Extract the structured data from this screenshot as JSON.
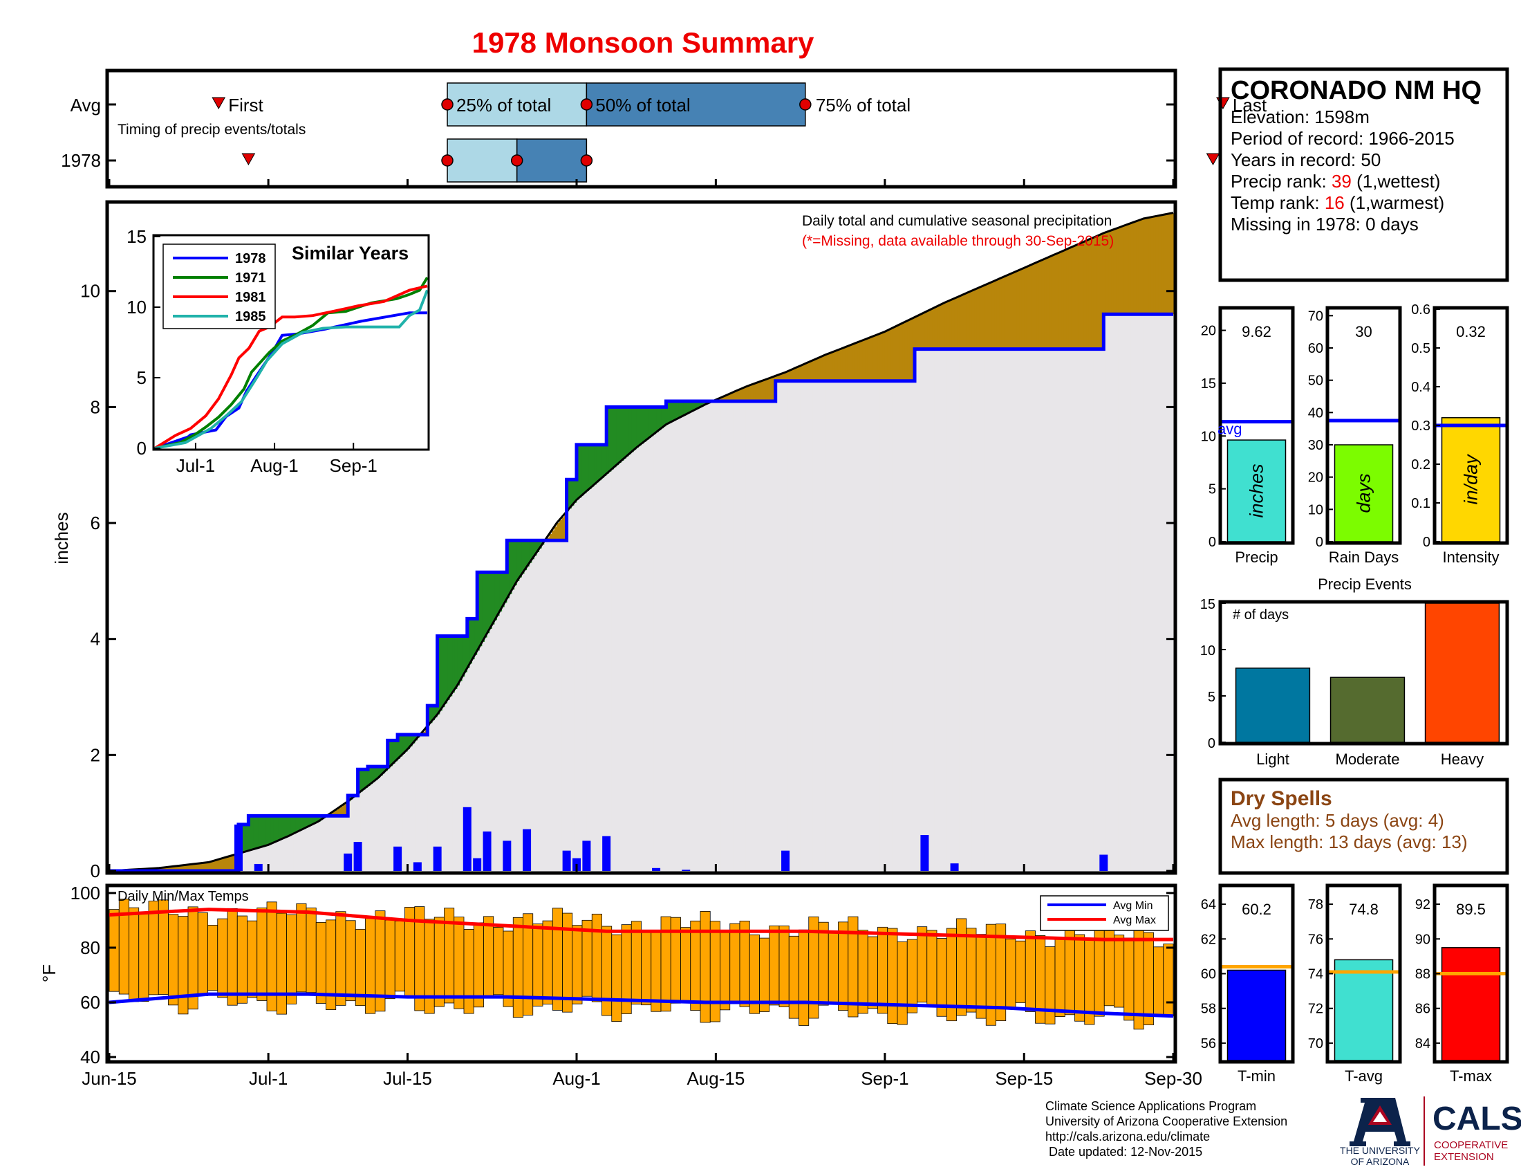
{
  "title": "1978 Monsoon Summary",
  "station": {
    "name": "CORONADO NM HQ",
    "lines": [
      "Elevation: 1598m",
      "Period of record: 1966-2015",
      "Years in record: 50"
    ],
    "precip_rank_prefix": "Precip rank: ",
    "precip_rank": "39",
    "precip_rank_suffix": " (1,wettest)",
    "temp_rank_prefix": "Temp rank: ",
    "temp_rank": "16",
    "temp_rank_suffix": " (1,warmest)",
    "missing": "Missing in 1978: 0 days"
  },
  "timing": {
    "row_labels": [
      "Avg",
      "1978"
    ],
    "first_label": "First",
    "last_label": "Last",
    "pct25_label": "25% of total",
    "pct50_label": "50% of total",
    "pct75_label": "75% of total",
    "note": "Timing of precip events/totals",
    "avg": {
      "first": 11,
      "p25": 34,
      "p50": 48,
      "p75": 70,
      "last": 112
    },
    "y1978": {
      "first": 14,
      "p25": 34,
      "p50": 41,
      "p75": 48,
      "last": 111
    },
    "colors": {
      "light": "#add8e6",
      "dark": "#4682b4",
      "marker": "#e00000"
    }
  },
  "chart_data": [
    {
      "type": "area",
      "id": "cumulative",
      "title": "Daily total and cumulative seasonal precipitation",
      "subtitle": "(*=Missing, data available through 30-Sep-2015)",
      "ylabel": "inches",
      "xlim": [
        0,
        107
      ],
      "ylim": [
        0,
        11.5
      ],
      "x_ticks": [
        {
          "day": 0,
          "label": "Jun-15"
        },
        {
          "day": 16,
          "label": "Jul-1"
        },
        {
          "day": 30,
          "label": "Jul-15"
        },
        {
          "day": 47,
          "label": "Aug-1"
        },
        {
          "day": 61,
          "label": "Aug-15"
        },
        {
          "day": 78,
          "label": "Sep-1"
        },
        {
          "day": 92,
          "label": "Sep-15"
        },
        {
          "day": 107,
          "label": "Sep-30"
        }
      ],
      "y_ticks": [
        0,
        2,
        4,
        6,
        8,
        10
      ],
      "series": [
        {
          "name": "Avg cumulative",
          "x": [
            0,
            5,
            10,
            13,
            16,
            18,
            21,
            24,
            27,
            30,
            33,
            35,
            37,
            39,
            41,
            43,
            45,
            47,
            50,
            53,
            56,
            60,
            64,
            68,
            70,
            72,
            75,
            78,
            81,
            84,
            88,
            92,
            96,
            100,
            104,
            107
          ],
          "y": [
            0,
            0.05,
            0.15,
            0.3,
            0.45,
            0.6,
            0.85,
            1.2,
            1.6,
            2.1,
            2.7,
            3.2,
            3.8,
            4.4,
            5.0,
            5.5,
            6.0,
            6.4,
            6.85,
            7.3,
            7.7,
            8.05,
            8.35,
            8.6,
            8.75,
            8.9,
            9.1,
            9.3,
            9.55,
            9.8,
            10.1,
            10.4,
            10.7,
            11.0,
            11.25,
            11.35
          ]
        },
        {
          "name": "1978 cumulative",
          "x": [
            0,
            13,
            13,
            14,
            14,
            24,
            24,
            25,
            25,
            26,
            26,
            28,
            28,
            29,
            29,
            32,
            32,
            33,
            33,
            36,
            36,
            37,
            37,
            40,
            40,
            46,
            46,
            47,
            47,
            50,
            50,
            56,
            56,
            67,
            67,
            81,
            81,
            100,
            100,
            107
          ],
          "y": [
            0,
            0,
            0.8,
            0.8,
            0.95,
            0.95,
            1.3,
            1.3,
            1.75,
            1.75,
            1.8,
            1.8,
            2.25,
            2.25,
            2.35,
            2.35,
            2.85,
            2.85,
            4.05,
            4.05,
            4.35,
            4.35,
            5.15,
            5.15,
            5.7,
            5.7,
            6.75,
            6.75,
            7.35,
            7.35,
            8.0,
            8.0,
            8.1,
            8.1,
            8.45,
            8.45,
            9.0,
            9.0,
            9.6,
            9.6
          ]
        },
        {
          "name": "1978 daily",
          "days": [
            13,
            15,
            24,
            25,
            29,
            31,
            33,
            36,
            37,
            38,
            40,
            42,
            46,
            47,
            48,
            50,
            55,
            58,
            68,
            82,
            85,
            100
          ],
          "values": [
            0.8,
            0.12,
            0.3,
            0.5,
            0.42,
            0.15,
            0.42,
            1.1,
            0.22,
            0.68,
            0.52,
            0.72,
            0.35,
            0.22,
            0.52,
            0.6,
            0.05,
            0.02,
            0.35,
            0.62,
            0.13,
            0.28
          ]
        }
      ],
      "colors": {
        "line": "#0000ff",
        "above_avg": "#228b22",
        "below_avg": "#b8860b",
        "base": "#e8e6e9",
        "bar": "#0000ff"
      }
    },
    {
      "type": "line",
      "id": "similar_years",
      "title": "Similar Years",
      "ylim": [
        0,
        15
      ],
      "xlim": [
        0,
        107
      ],
      "y_ticks": [
        0,
        5,
        10,
        15
      ],
      "x_ticks": [
        {
          "day": 16,
          "label": "Jul-1"
        },
        {
          "day": 47,
          "label": "Aug-1"
        },
        {
          "day": 78,
          "label": "Sep-1"
        }
      ],
      "series": [
        {
          "name": "1978",
          "color": "#0000ff",
          "x": [
            0,
            13,
            14,
            24,
            28,
            33,
            36,
            40,
            46,
            50,
            56,
            67,
            81,
            100,
            107
          ],
          "y": [
            0,
            0.8,
            0.95,
            1.3,
            2.25,
            2.85,
            4.05,
            5.15,
            6.75,
            8.0,
            8.1,
            8.45,
            9.0,
            9.6,
            9.6
          ]
        },
        {
          "name": "1971",
          "color": "#008000",
          "x": [
            0,
            10,
            16,
            20,
            25,
            30,
            35,
            38,
            45,
            50,
            56,
            62,
            68,
            75,
            85,
            95,
            100,
            104,
            107
          ],
          "y": [
            0,
            0.4,
            1.0,
            1.5,
            2.2,
            3.1,
            4.2,
            5.4,
            6.8,
            7.6,
            8.1,
            8.7,
            9.6,
            9.7,
            10.3,
            10.6,
            10.9,
            11.2,
            12.1
          ]
        },
        {
          "name": "1981",
          "color": "#ff0000",
          "x": [
            0,
            8,
            14,
            20,
            25,
            30,
            33,
            37,
            41,
            45,
            50,
            55,
            62,
            70,
            80,
            90,
            100,
            107
          ],
          "y": [
            0,
            0.9,
            1.4,
            2.3,
            3.5,
            5.2,
            6.4,
            7.1,
            8.3,
            8.6,
            9.3,
            9.3,
            9.4,
            9.7,
            10.1,
            10.4,
            11.2,
            11.5
          ]
        },
        {
          "name": "1985",
          "color": "#20b2aa",
          "x": [
            0,
            12,
            18,
            22,
            28,
            34,
            40,
            44,
            50,
            58,
            66,
            75,
            85,
            96,
            100,
            104,
            107
          ],
          "y": [
            0,
            0.4,
            1.0,
            1.4,
            2.3,
            3.3,
            5.0,
            6.2,
            7.4,
            8.2,
            8.5,
            8.6,
            8.6,
            8.6,
            9.4,
            9.8,
            11.2
          ]
        }
      ]
    },
    {
      "type": "bar",
      "id": "precip_total",
      "categories": [
        "Precip"
      ],
      "values": [
        9.62
      ],
      "value_label": "9.62",
      "bar_label": "inches",
      "avg": 11.35,
      "avg_label": "avg",
      "ylim": [
        0,
        22
      ],
      "y_ticks": [
        0,
        5,
        10,
        15,
        20
      ],
      "color": "#40e0d0"
    },
    {
      "type": "bar",
      "id": "rain_days",
      "categories": [
        "Rain Days"
      ],
      "values": [
        30
      ],
      "value_label": "30",
      "bar_label": "days",
      "avg": 37.5,
      "ylim": [
        0,
        72
      ],
      "y_ticks": [
        0,
        10,
        20,
        30,
        40,
        50,
        60,
        70
      ],
      "color": "#7cfc00"
    },
    {
      "type": "bar",
      "id": "intensity",
      "categories": [
        "Intensity"
      ],
      "values": [
        0.32
      ],
      "value_label": "0.32",
      "bar_label": "in/day",
      "avg": 0.3,
      "ylim": [
        0,
        0.6
      ],
      "y_ticks": [
        0,
        0.1,
        0.2,
        0.3,
        0.4,
        0.5,
        0.6
      ],
      "color": "#ffd700"
    },
    {
      "type": "bar",
      "id": "precip_events",
      "title": "Precip Events",
      "ylabel": "# of days",
      "categories": [
        "Light",
        "Moderate",
        "Heavy"
      ],
      "values": [
        8,
        7,
        15
      ],
      "colors": [
        "#0077a0",
        "#556b2f",
        "#ff4500"
      ],
      "ylim": [
        0,
        15
      ],
      "y_ticks": [
        0,
        5,
        10,
        15
      ]
    },
    {
      "type": "bar",
      "id": "daily_temps",
      "title": "Daily Min/Max Temps",
      "ylabel": "°F",
      "ylim": [
        39,
        102
      ],
      "y_ticks": [
        40,
        60,
        80,
        100
      ],
      "legend": [
        "Avg Min",
        "Avg Max"
      ],
      "legend_position": "top-right",
      "max_start": 94,
      "max_end": 84,
      "min_start": 61,
      "min_end": 54,
      "avg_max": {
        "x": [
          0,
          10,
          20,
          30,
          40,
          50,
          60,
          70,
          80,
          90,
          100,
          107
        ],
        "y": [
          92,
          94,
          93,
          90,
          88,
          86,
          86,
          86,
          85,
          84,
          83,
          83
        ]
      },
      "avg_min": {
        "x": [
          0,
          10,
          20,
          30,
          40,
          50,
          60,
          70,
          80,
          90,
          100,
          107
        ],
        "y": [
          60,
          63,
          63,
          62,
          62,
          61,
          60,
          60,
          59,
          58,
          56,
          55
        ]
      },
      "color": "#ffa500"
    },
    {
      "type": "bar",
      "id": "t_min",
      "categories": [
        "T-min"
      ],
      "values": [
        60.2
      ],
      "value_label": "60.2",
      "avg": 60.4,
      "ylim": [
        55,
        65
      ],
      "y_ticks": [
        56,
        58,
        60,
        62,
        64
      ],
      "color": "#0000ff"
    },
    {
      "type": "bar",
      "id": "t_avg",
      "categories": [
        "T-avg"
      ],
      "values": [
        74.8
      ],
      "value_label": "74.8",
      "avg": 74.1,
      "ylim": [
        69,
        79
      ],
      "y_ticks": [
        70,
        72,
        74,
        76,
        78
      ],
      "color": "#40e0d0"
    },
    {
      "type": "bar",
      "id": "t_max",
      "categories": [
        "T-max"
      ],
      "values": [
        89.5
      ],
      "value_label": "89.5",
      "avg": 88.0,
      "ylim": [
        83,
        93
      ],
      "y_ticks": [
        84,
        86,
        88,
        90,
        92
      ],
      "color": "#ff0000"
    }
  ],
  "dry_spells": {
    "title": "Dry Spells",
    "avg_length": "Avg length: 5 days (avg: 4)",
    "max_length": "Max length: 13 days (avg: 13)",
    "color": "#8b4513"
  },
  "footer": {
    "lines": [
      "Climate Science Applications Program",
      "University of Arizona Cooperative Extension",
      "http://cals.arizona.edu/climate",
      " Date updated: 12-Nov-2015"
    ]
  },
  "logos": {
    "ua_line1": "THE UNIVERSITY",
    "ua_line2": "OF ARIZONA",
    "cals": "CALS",
    "cals_sub1": "COOPERATIVE",
    "cals_sub2": "EXTENSION",
    "navy": "#0c234b",
    "red": "#ab0520"
  }
}
